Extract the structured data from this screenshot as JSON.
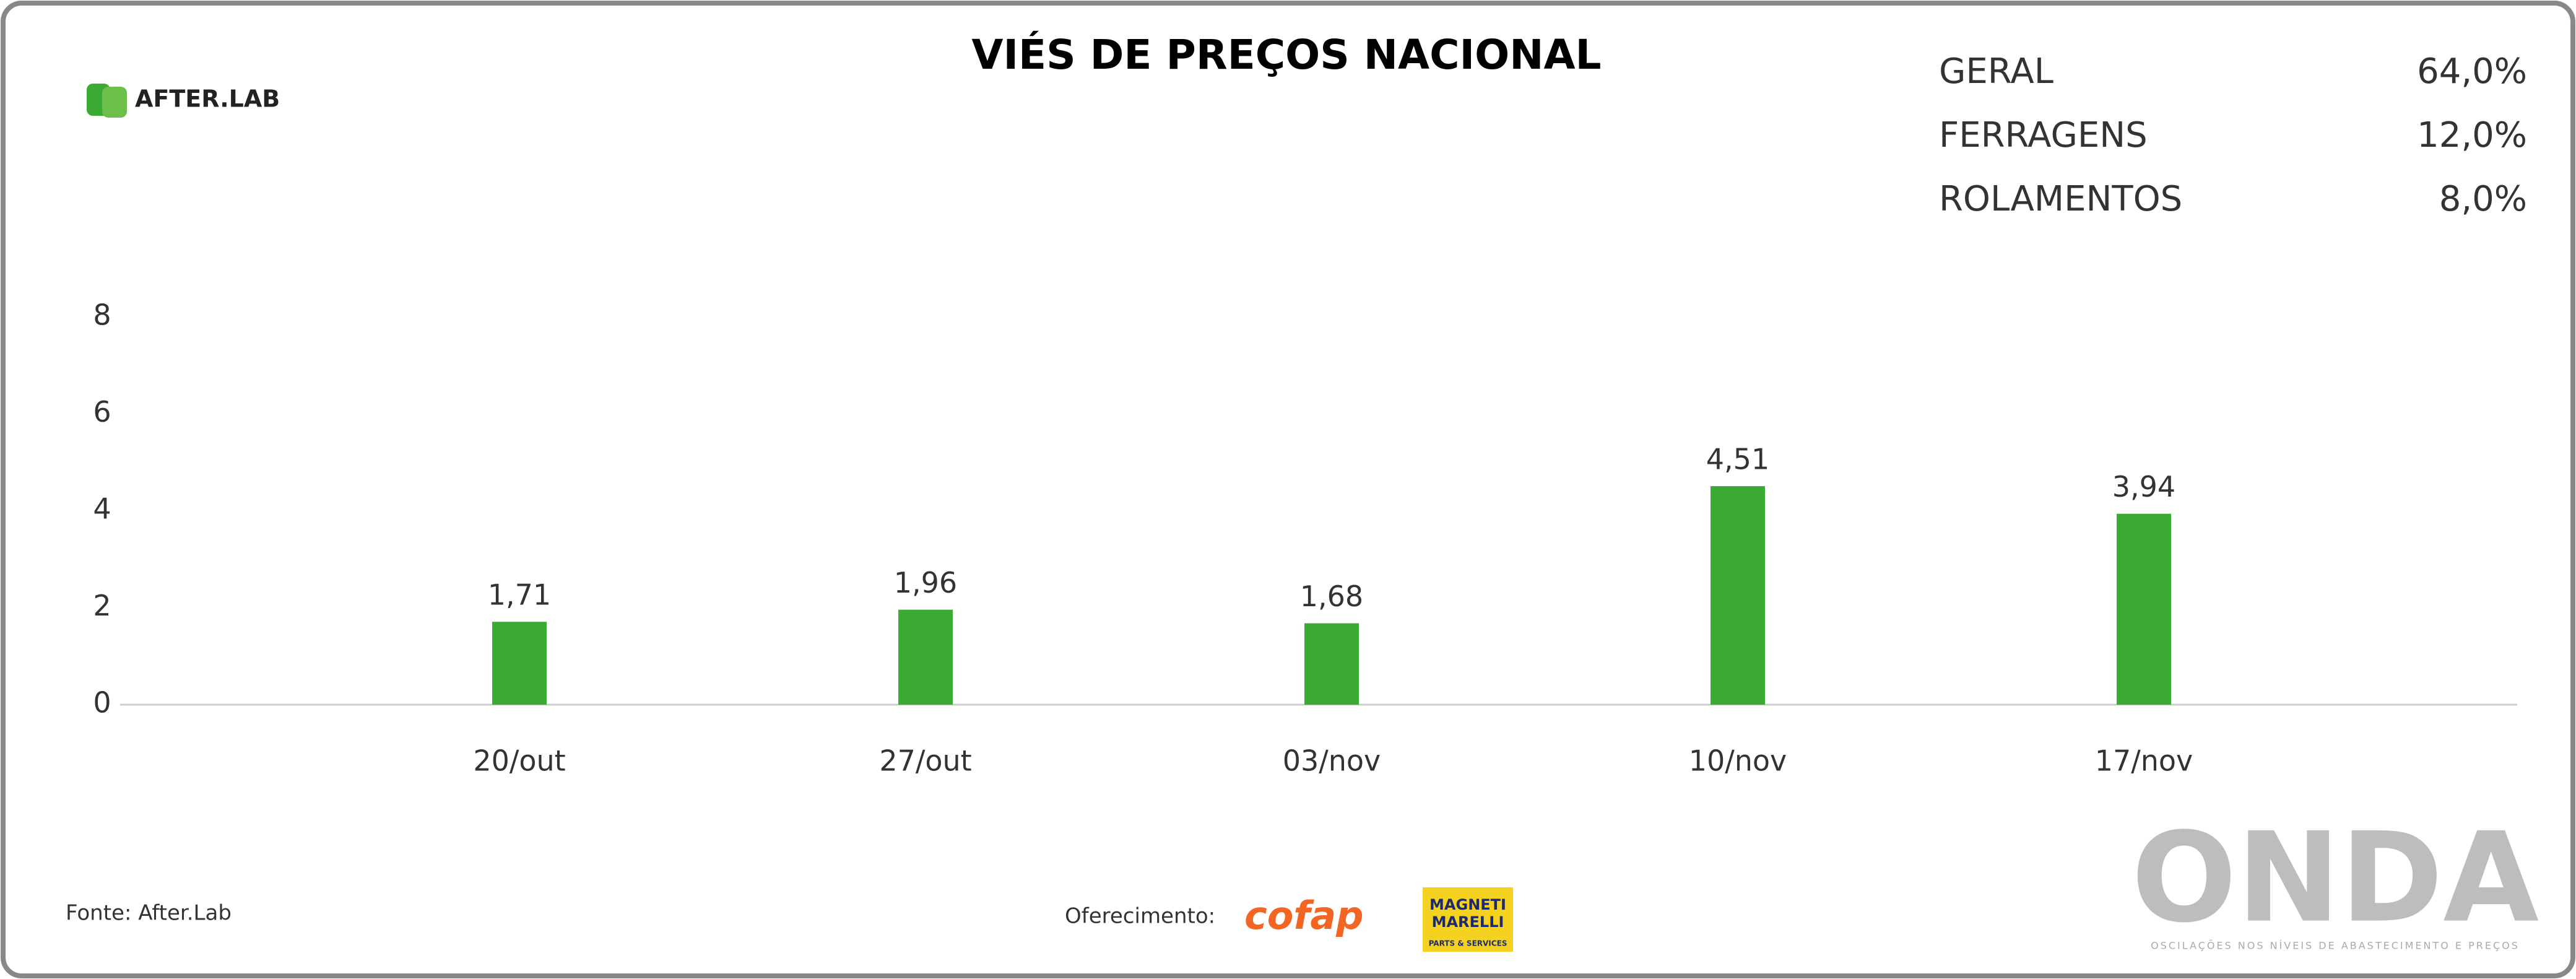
{
  "chart_data": {
    "type": "bar",
    "title": "VIÉS DE PREÇOS NACIONAL",
    "categories": [
      "20/out",
      "27/out",
      "03/nov",
      "10/nov",
      "17/nov"
    ],
    "values": [
      1.71,
      1.96,
      1.68,
      4.51,
      3.94
    ],
    "value_labels": [
      "1,71",
      "1,96",
      "1,68",
      "4,51",
      "3,94"
    ],
    "color": "#3aaa35",
    "ylim": [
      0,
      8
    ],
    "yticks": [
      0,
      2,
      4,
      6,
      8
    ],
    "grid": false
  },
  "stats": [
    {
      "label": "GERAL",
      "value": "64,0%"
    },
    {
      "label": "FERRAGENS",
      "value": "12,0%"
    },
    {
      "label": "ROLAMENTOS",
      "value": "8,0%"
    }
  ],
  "logo": "AFTER.LAB",
  "source": "Fonte: After.Lab",
  "sponsor_label": "Oferecimento:",
  "sponsors": [
    "cofap",
    "MAGNETI",
    "MARELLI",
    "PARTS & SERVICES"
  ],
  "brand": {
    "name": "ONDA",
    "tagline": "OSCILAÇÕES NOS NÍVEIS DE ABASTECIMENTO E PREÇOS"
  }
}
